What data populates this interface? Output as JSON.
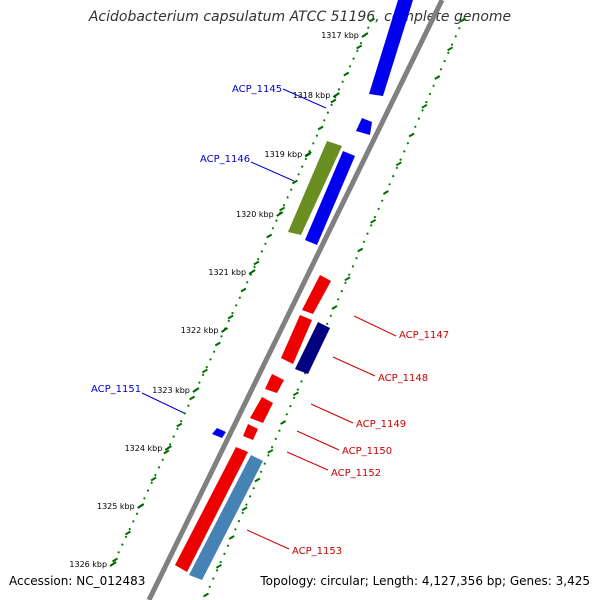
{
  "title": "Acidobacterium capsulatum ATCC 51196, complete genome",
  "accession": "Accession: NC_012483",
  "summary": "Topology: circular; Length: 4,127,356 bp; Genes: 3,425",
  "ticks": [
    "1317 kbp",
    "1318 kbp",
    "1319 kbp",
    "1320 kbp",
    "1321 kbp",
    "1322 kbp",
    "1323 kbp",
    "1324 kbp",
    "1325 kbp",
    "1326 kbp"
  ],
  "genes": [
    {
      "label": "ACP_1145",
      "color": "#0000dd"
    },
    {
      "label": "ACP_1146",
      "color": "#0000dd"
    },
    {
      "label": "ACP_1147",
      "color": "#dd0000"
    },
    {
      "label": "ACP_1148",
      "color": "#dd0000"
    },
    {
      "label": "ACP_1149",
      "color": "#dd0000"
    },
    {
      "label": "ACP_1150",
      "color": "#dd0000"
    },
    {
      "label": "ACP_1151",
      "color": "#0000dd"
    },
    {
      "label": "ACP_1152",
      "color": "#dd0000"
    },
    {
      "label": "ACP_1153",
      "color": "#dd0000"
    }
  ],
  "colors": {
    "forward_cds": "#0000ee",
    "reverse_cds": "#ee0000",
    "olive_feature": "#6b8e23",
    "navy_feature": "#000080",
    "steelblue_feature": "#4682b4",
    "backbone": "#808080",
    "ticks": "#008000"
  }
}
